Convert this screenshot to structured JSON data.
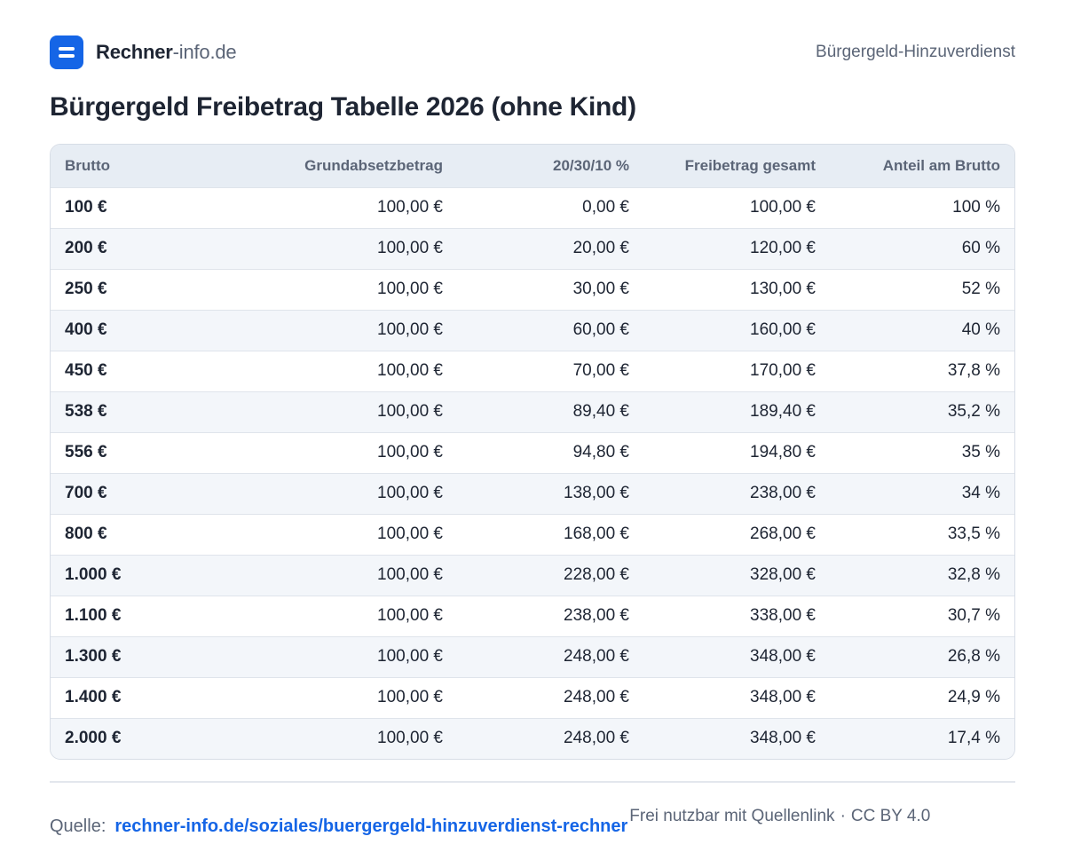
{
  "header": {
    "brand_strong": "Rechner",
    "brand_light": "-info.de",
    "nav_link": "Bürgergeld-Hinzuverdienst"
  },
  "page": {
    "title": "Bürgergeld Freibetrag Tabelle 2026 (ohne Kind)"
  },
  "table": {
    "columns": [
      "Brutto",
      "Grundabsetzbetrag",
      "20/30/10 %",
      "Freibetrag gesamt",
      "Anteil am Brutto"
    ],
    "rows": [
      [
        "100 €",
        "100,00 €",
        "0,00 €",
        "100,00 €",
        "100 %"
      ],
      [
        "200 €",
        "100,00 €",
        "20,00 €",
        "120,00 €",
        "60 %"
      ],
      [
        "250 €",
        "100,00 €",
        "30,00 €",
        "130,00 €",
        "52 %"
      ],
      [
        "400 €",
        "100,00 €",
        "60,00 €",
        "160,00 €",
        "40 %"
      ],
      [
        "450 €",
        "100,00 €",
        "70,00 €",
        "170,00 €",
        "37,8 %"
      ],
      [
        "538 €",
        "100,00 €",
        "89,40 €",
        "189,40 €",
        "35,2 %"
      ],
      [
        "556 €",
        "100,00 €",
        "94,80 €",
        "194,80 €",
        "35 %"
      ],
      [
        "700 €",
        "100,00 €",
        "138,00 €",
        "238,00 €",
        "34 %"
      ],
      [
        "800 €",
        "100,00 €",
        "168,00 €",
        "268,00 €",
        "33,5 %"
      ],
      [
        "1.000 €",
        "100,00 €",
        "228,00 €",
        "328,00 €",
        "32,8 %"
      ],
      [
        "1.100 €",
        "100,00 €",
        "238,00 €",
        "338,00 €",
        "30,7 %"
      ],
      [
        "1.300 €",
        "100,00 €",
        "248,00 €",
        "348,00 €",
        "26,8 %"
      ],
      [
        "1.400 €",
        "100,00 €",
        "248,00 €",
        "348,00 €",
        "24,9 %"
      ],
      [
        "2.000 €",
        "100,00 €",
        "248,00 €",
        "348,00 €",
        "17,4 %"
      ]
    ]
  },
  "footer": {
    "source_label": "Quelle:",
    "source_link": "rechner-info.de/soziales/buergergeld-hinzuverdienst-rechner",
    "license_text": "Frei nutzbar mit Quellenlink",
    "license_sep": "·",
    "license_name": "CC BY 4.0"
  },
  "colors": {
    "accent": "#1565e6",
    "text_dark": "#1e2533",
    "text_muted": "#5b6577",
    "header_bg": "#e7edf4",
    "row_alt_bg": "#f3f6fa"
  },
  "icons": {
    "logo": "rechner-logo-icon"
  }
}
